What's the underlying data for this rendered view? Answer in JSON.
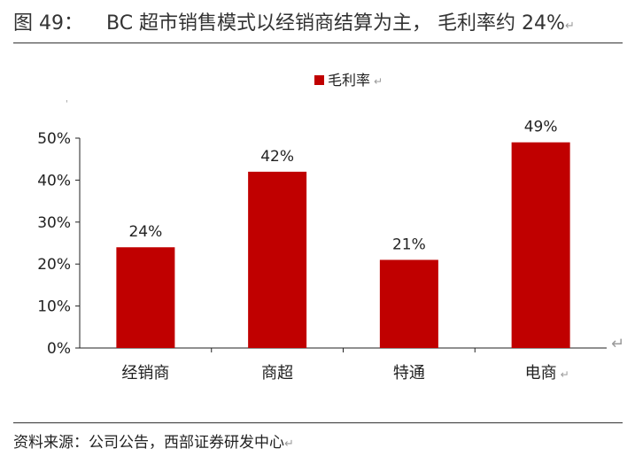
{
  "figure": {
    "number": "图 49：",
    "title": "BC 超市销售模式以经销商结算为主， 毛利率约 24%",
    "source": "资料来源：公司公告，西部证券研发中心",
    "return_mark": "↵"
  },
  "chart_data": {
    "type": "bar",
    "title": "",
    "xlabel": "",
    "ylabel": "",
    "categories": [
      "经销商",
      "商超",
      "特通",
      "电商"
    ],
    "series": [
      {
        "name": "毛利率",
        "values": [
          24,
          42,
          21,
          49
        ],
        "color": "#c00000"
      }
    ],
    "data_labels": [
      "24%",
      "42%",
      "21%",
      "49%"
    ],
    "yticks": [
      0,
      10,
      20,
      30,
      40,
      50
    ],
    "ytick_labels": [
      "0%",
      "10%",
      "20%",
      "30%",
      "40%",
      "50%"
    ],
    "ylim": [
      0,
      50
    ],
    "grid": false,
    "legend_position": "top-center"
  }
}
